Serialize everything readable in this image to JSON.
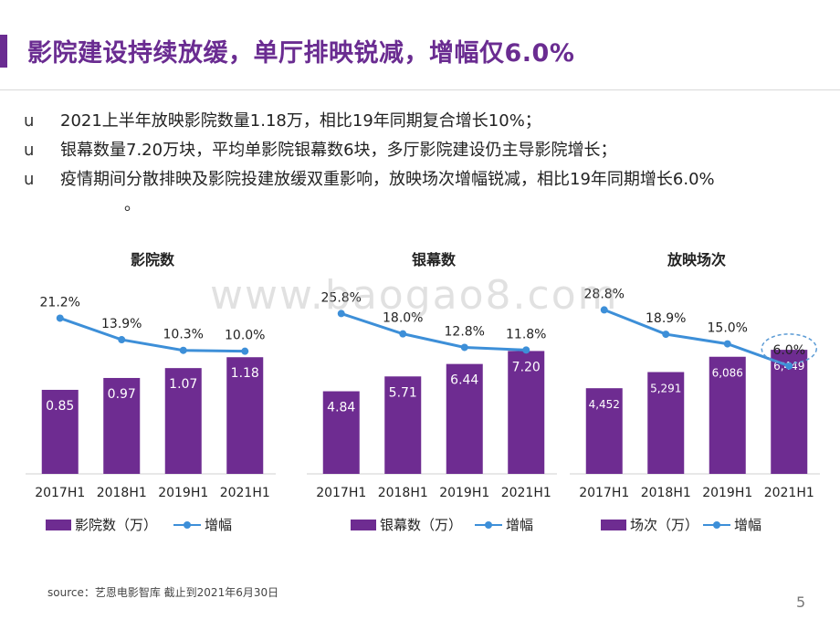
{
  "slide": {
    "title": "影院建设持续放缓，单厅排映锐减，增幅仅6.0%",
    "bullets": [
      {
        "marker": "u",
        "text": "2021上半年放映影院数量1.18万，相比19年同期复合增长10%；"
      },
      {
        "marker": "u",
        "text": "银幕数量7.20万块，平均单影院银幕数6块，多厅影院建设仍主导影院增长；"
      },
      {
        "marker": "u",
        "text": "疫情期间分散排映及影院投建放缓双重影响，放映场次增幅锐减，相比19年同期增长6.0%",
        "cont": "。"
      }
    ],
    "watermark": "www.baogao8.com",
    "source": "source：艺恩电影智库     截止到2021年6月30日",
    "page_number": "5"
  },
  "colors": {
    "bar": "#6e2c91",
    "line": "#3d8fd8",
    "title": "#6a2c91",
    "highlight": "#5b9bd5"
  },
  "chart_data": [
    {
      "type": "bar",
      "title": "影院数",
      "categories": [
        "2017H1",
        "2018H1",
        "2019H1",
        "2021H1"
      ],
      "series": [
        {
          "name": "影院数（万）",
          "type": "bar",
          "values": [
            0.85,
            0.97,
            1.07,
            1.18
          ],
          "labels": [
            "0.85",
            "0.97",
            "1.07",
            "1.18"
          ]
        },
        {
          "name": "增幅",
          "type": "line",
          "values": [
            21.2,
            13.9,
            10.3,
            10.0
          ],
          "labels": [
            "21.2%",
            "13.9%",
            "10.3%",
            "10.0%"
          ]
        }
      ],
      "bar_max": 1.45,
      "line_range": [
        0,
        30
      ],
      "legend_position": "bottom",
      "highlight_index": null
    },
    {
      "type": "bar",
      "title": "银幕数",
      "categories": [
        "2017H1",
        "2018H1",
        "2019H1",
        "2021H1"
      ],
      "series": [
        {
          "name": "银幕数（万）",
          "type": "bar",
          "values": [
            4.84,
            5.71,
            6.44,
            7.2
          ],
          "labels": [
            "4.84",
            "5.71",
            "6.44",
            "7.20"
          ]
        },
        {
          "name": "增幅",
          "type": "line",
          "values": [
            25.8,
            18.0,
            12.8,
            11.8
          ],
          "labels": [
            "25.8%",
            "18.0%",
            "12.8%",
            "11.8%"
          ]
        }
      ],
      "bar_max": 8.4,
      "line_range": [
        0,
        34
      ],
      "legend_position": "bottom",
      "highlight_index": null
    },
    {
      "type": "bar",
      "title": "放映场次",
      "categories": [
        "2017H1",
        "2018H1",
        "2019H1",
        "2021H1"
      ],
      "series": [
        {
          "name": "场次（万）",
          "type": "bar",
          "values": [
            4452,
            5291,
            6086,
            6449
          ],
          "labels": [
            "4,452",
            "5,291",
            "6,086",
            "6,449"
          ]
        },
        {
          "name": "增幅",
          "type": "line",
          "values": [
            28.8,
            18.9,
            15.0,
            6.0
          ],
          "labels": [
            "28.8%",
            "18.9%",
            "15.0%",
            "6.0%"
          ]
        }
      ],
      "bar_max": 7450,
      "line_range": [
        0,
        36
      ],
      "legend_position": "bottom",
      "highlight_index": 3
    }
  ]
}
